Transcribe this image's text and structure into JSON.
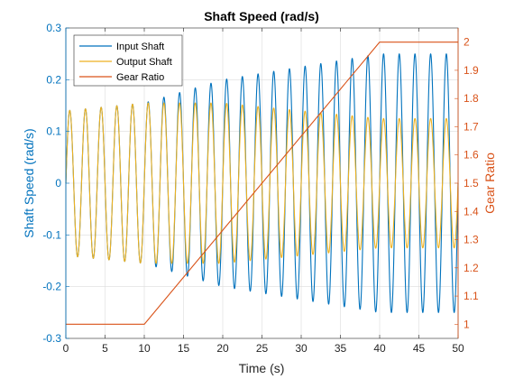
{
  "chart_data": {
    "type": "line",
    "title": "Shaft Speed (rad/s)",
    "xlabel": "Time (s)",
    "ylabel_left": "Shaft Speed (rad/s)",
    "ylabel_right": "Gear Ratio",
    "xlim": [
      0,
      50
    ],
    "ylim_left": [
      -0.3,
      0.3
    ],
    "ylim_right": [
      0.95,
      2.05
    ],
    "grid": true,
    "legend_position": "top-left",
    "x_ticks": [
      0,
      5,
      10,
      15,
      20,
      25,
      30,
      35,
      40,
      45,
      50
    ],
    "x_tick_labels": [
      "0",
      "5",
      "10",
      "15",
      "20",
      "25",
      "30",
      "35",
      "40",
      "45",
      "50"
    ],
    "y_left_ticks": [
      -0.3,
      -0.2,
      -0.1,
      0,
      0.1,
      0.2,
      0.3
    ],
    "y_left_tick_labels": [
      "-0.3",
      "-0.2",
      "-0.1",
      "0",
      "0.1",
      "0.2",
      "0.3"
    ],
    "y_right_ticks": [
      1,
      1.1,
      1.2,
      1.3,
      1.4,
      1.5,
      1.6,
      1.7,
      1.8,
      1.9,
      2
    ],
    "y_right_tick_labels": [
      "1",
      "1.1",
      "1.2",
      "1.3",
      "1.4",
      "1.5",
      "1.6",
      "1.7",
      "1.8",
      "1.9",
      "2"
    ],
    "series": [
      {
        "name": "Input Shaft",
        "axis": "left",
        "color": "#0072BD",
        "form": "sinusoid",
        "frequency_hz": 0.5,
        "amplitude_points": [
          [
            0,
            0.14
          ],
          [
            10,
            0.155
          ],
          [
            20,
            0.2
          ],
          [
            30,
            0.225
          ],
          [
            40,
            0.25
          ],
          [
            50,
            0.25
          ]
        ]
      },
      {
        "name": "Output Shaft",
        "axis": "left",
        "color": "#EDB120",
        "form": "sinusoid",
        "frequency_hz": 0.5,
        "amplitude_points": [
          [
            0,
            0.14
          ],
          [
            10,
            0.155
          ],
          [
            20,
            0.155
          ],
          [
            30,
            0.14
          ],
          [
            40,
            0.125
          ],
          [
            50,
            0.125
          ]
        ]
      },
      {
        "name": "Gear Ratio",
        "axis": "right",
        "color": "#D95319",
        "x": [
          0,
          10,
          40,
          50
        ],
        "y": [
          1,
          1,
          2,
          2
        ]
      }
    ]
  }
}
